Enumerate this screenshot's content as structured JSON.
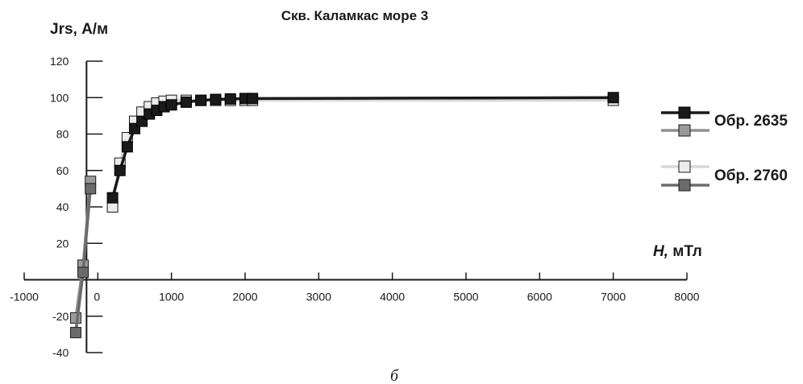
{
  "chart_data": {
    "type": "line",
    "title": "Скв. Каламкас  море 3",
    "ylabel": "Jrs, А/м",
    "xlabel_italic": "H,",
    "xlabel_rest": " мТл",
    "caption": "б",
    "xlim": [
      -1000,
      8000
    ],
    "ylim": [
      -40,
      120
    ],
    "xticks": [
      -1000,
      0,
      1000,
      2000,
      3000,
      4000,
      5000,
      6000,
      7000,
      8000
    ],
    "xtick_labels": [
      "-1000",
      "0",
      "1000",
      "2000",
      "3000",
      "4000",
      "5000",
      "6000",
      "7000",
      "8000"
    ],
    "yticks": [
      -40,
      -20,
      20,
      40,
      60,
      80,
      100,
      120
    ],
    "ytick_labels": [
      "-40",
      "-20",
      "20",
      "40",
      "60",
      "80",
      "100",
      "120"
    ],
    "legend": [
      {
        "label": "Обр. 2635"
      },
      {
        "label": "Обр. 2760"
      }
    ],
    "series": [
      {
        "id": "s2635a",
        "line_color": "#1a1a1a",
        "fill": "#1a1a1a",
        "stroke": "#000000",
        "points": [
          [
            200,
            45
          ],
          [
            300,
            60
          ],
          [
            400,
            73
          ],
          [
            500,
            83
          ],
          [
            600,
            87
          ],
          [
            700,
            91
          ],
          [
            800,
            93
          ],
          [
            900,
            95
          ],
          [
            1000,
            96
          ],
          [
            1200,
            97.5
          ],
          [
            1400,
            98.5
          ],
          [
            1600,
            99
          ],
          [
            1800,
            99.3
          ],
          [
            2000,
            99.5
          ],
          [
            2100,
            99.5
          ],
          [
            7000,
            100
          ]
        ]
      },
      {
        "id": "s2760a",
        "line_color": "#d8d8d8",
        "fill": "#ececec",
        "stroke": "#1a1a1a",
        "points": [
          [
            200,
            40
          ],
          [
            300,
            64
          ],
          [
            400,
            78
          ],
          [
            500,
            87
          ],
          [
            600,
            92
          ],
          [
            700,
            95
          ],
          [
            800,
            97
          ],
          [
            900,
            98
          ],
          [
            1000,
            98.5
          ],
          [
            1200,
            98.5
          ],
          [
            1400,
            98.5
          ],
          [
            1600,
            98.5
          ],
          [
            1800,
            98.5
          ],
          [
            2000,
            98.5
          ],
          [
            2100,
            98.5
          ],
          [
            7000,
            98.5
          ]
        ]
      },
      {
        "id": "s2635b",
        "line_color": "#8f8f8f",
        "fill": "#9a9a9a",
        "stroke": "#1a1a1a",
        "points": [
          [
            -300,
            -21
          ],
          [
            -200,
            8
          ],
          [
            -100,
            54
          ]
        ]
      },
      {
        "id": "s2760b",
        "line_color": "#6b6b6b",
        "fill": "#6b6b6b",
        "stroke": "#1a1a1a",
        "points": [
          [
            -300,
            -29
          ],
          [
            -200,
            4
          ],
          [
            -100,
            50
          ]
        ]
      }
    ]
  }
}
